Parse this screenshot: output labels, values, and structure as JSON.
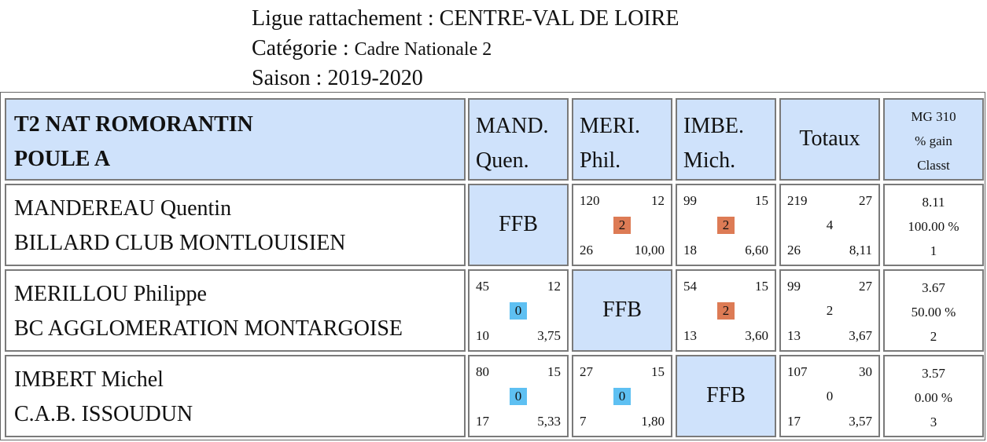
{
  "header": {
    "ligue_label": "Ligue rattachement : ",
    "ligue_value": "CENTRE-VAL DE LOIRE",
    "categorie_label": "Catégorie : ",
    "categorie_value": "Cadre Nationale 2",
    "saison_label": "Saison : ",
    "saison_value": "2019-2020"
  },
  "table": {
    "title_line1": "T2 NAT ROMORANTIN",
    "title_line2": "POULE A",
    "columns": [
      {
        "line1": "MAND.",
        "line2": "Quen."
      },
      {
        "line1": "MERI.",
        "line2": "Phil."
      },
      {
        "line1": "IMBE.",
        "line2": "Mich."
      }
    ],
    "totals_label": "Totaux",
    "mg_label": "MG 310",
    "gain_label": "% gain",
    "classt_label": "Classt",
    "ffb_label": "FFB",
    "colors": {
      "header_bg": "#cfe2fb",
      "win_badge": "#dd7b55",
      "loss_badge": "#5ec0f2"
    },
    "rows": [
      {
        "name": "MANDEREAU Quentin",
        "club": "BILLARD CLUB MONTLOUISIEN",
        "matches": [
          null,
          {
            "points": "120",
            "reprises": "12",
            "result": "2",
            "serie": "26",
            "moyenne": "10,00"
          },
          {
            "points": "99",
            "reprises": "15",
            "result": "2",
            "serie": "18",
            "moyenne": "6,60"
          }
        ],
        "totals": {
          "points": "219",
          "reprises": "27",
          "result": "4",
          "serie": "26",
          "moyenne": "8,11"
        },
        "mg": "8.11",
        "gain": "100.00 %",
        "classt": "1"
      },
      {
        "name": "MERILLOU Philippe",
        "club": "BC AGGLOMERATION MONTARGOISE",
        "matches": [
          {
            "points": "45",
            "reprises": "12",
            "result": "0",
            "serie": "10",
            "moyenne": "3,75"
          },
          null,
          {
            "points": "54",
            "reprises": "15",
            "result": "2",
            "serie": "13",
            "moyenne": "3,60"
          }
        ],
        "totals": {
          "points": "99",
          "reprises": "27",
          "result": "2",
          "serie": "13",
          "moyenne": "3,67"
        },
        "mg": "3.67",
        "gain": "50.00 %",
        "classt": "2"
      },
      {
        "name": "IMBERT Michel",
        "club": "C.A.B. ISSOUDUN",
        "matches": [
          {
            "points": "80",
            "reprises": "15",
            "result": "0",
            "serie": "17",
            "moyenne": "5,33"
          },
          {
            "points": "27",
            "reprises": "15",
            "result": "0",
            "serie": "7",
            "moyenne": "1,80"
          },
          null
        ],
        "totals": {
          "points": "107",
          "reprises": "30",
          "result": "0",
          "serie": "17",
          "moyenne": "3,57"
        },
        "mg": "3.57",
        "gain": "0.00 %",
        "classt": "3"
      }
    ]
  }
}
